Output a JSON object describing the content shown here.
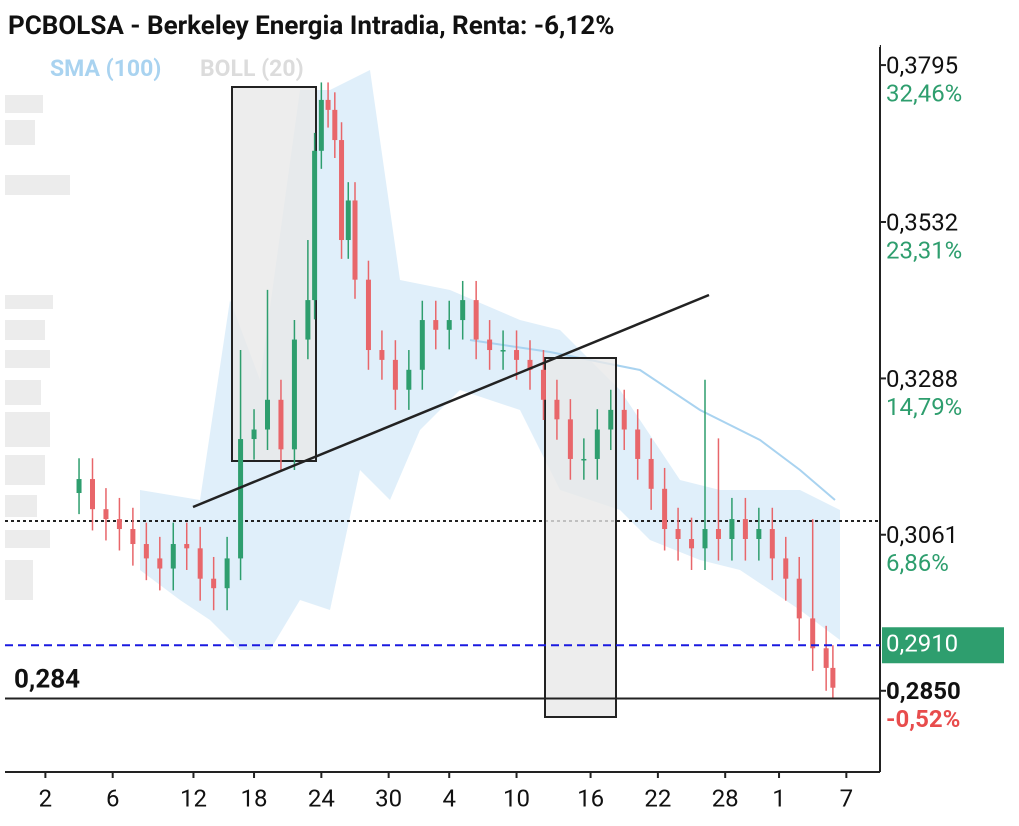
{
  "chart_data": {
    "type": "candlestick",
    "title": "PCBOLSA - Berkeley Energia Intradia, Renta: -6,12%",
    "legend": [
      "SMA (100)",
      "BOLL (20)"
    ],
    "log_scale": true,
    "up_color": "#2e9e6e",
    "down_color": "#e8666a",
    "xlim": [
      0,
      130
    ],
    "ylim": [
      0.2746,
      0.3883
    ],
    "xticks": [
      {
        "value": 6,
        "label": "2"
      },
      {
        "value": 16,
        "label": "6"
      },
      {
        "value": 28,
        "label": "12"
      },
      {
        "value": 37,
        "label": "18"
      },
      {
        "value": 47,
        "label": "24"
      },
      {
        "value": 57,
        "label": "30"
      },
      {
        "value": 66,
        "label": "4"
      },
      {
        "value": 76,
        "label": "10"
      },
      {
        "value": 87,
        "label": "16"
      },
      {
        "value": 97,
        "label": "22"
      },
      {
        "value": 107,
        "label": "28"
      },
      {
        "value": 115,
        "label": "1"
      },
      {
        "value": 125,
        "label": "7"
      }
    ],
    "yticks": [
      {
        "value": 0.3795,
        "label": "0,3795",
        "change": "32,46%"
      },
      {
        "value": 0.3532,
        "label": "0,3532",
        "change": "23,31%"
      },
      {
        "value": 0.3288,
        "label": "0,3288",
        "change": "14,79%"
      },
      {
        "value": 0.3061,
        "label": "0,3061",
        "change": "6,86%"
      }
    ],
    "last_price": {
      "value": 0.291,
      "label": "0,2910"
    },
    "current_price": {
      "value": 0.285,
      "label": "0,2850",
      "change": "-0,52%"
    },
    "level_line": {
      "value": 0.284,
      "label": "0,284"
    },
    "x": [
      11,
      13,
      15,
      17,
      19,
      21,
      23,
      25,
      27,
      29,
      31,
      33,
      35,
      37,
      39,
      41,
      43,
      45,
      46,
      47,
      48,
      49,
      50,
      51,
      52,
      54,
      56,
      58,
      60,
      62,
      64,
      66,
      68,
      70,
      72,
      74,
      76,
      78,
      80,
      82,
      84,
      86,
      88,
      90,
      92,
      94,
      96,
      98,
      100,
      102,
      104,
      106,
      108,
      110,
      112,
      114,
      116,
      118,
      120,
      122,
      123
    ],
    "open": [
      0.312,
      0.314,
      0.3097,
      0.3083,
      0.3069,
      0.3048,
      0.3028,
      0.3014,
      0.3048,
      0.3042,
      0.3,
      0.2987,
      0.3028,
      0.3198,
      0.3212,
      0.3256,
      0.3183,
      0.3347,
      0.3408,
      0.3649,
      0.3735,
      0.3718,
      0.3667,
      0.3503,
      0.3567,
      0.344,
      0.3331,
      0.3316,
      0.3271,
      0.3301,
      0.3377,
      0.3362,
      0.3377,
      0.3408,
      0.3347,
      0.3331,
      0.3331,
      0.3316,
      0.3301,
      0.3256,
      0.3227,
      0.3169,
      0.3169,
      0.3212,
      0.3241,
      0.3212,
      0.3169,
      0.3126,
      0.3069,
      0.3055,
      0.3042,
      0.3069,
      0.3055,
      0.3083,
      0.3055,
      0.3069,
      0.3028,
      0.3,
      0.2946,
      0.2906,
      0.288
    ],
    "high": [
      0.317,
      0.317,
      0.3127,
      0.3113,
      0.3099,
      0.3078,
      0.3058,
      0.3078,
      0.3078,
      0.3072,
      0.303,
      0.3058,
      0.3331,
      0.3242,
      0.3424,
      0.3286,
      0.3377,
      0.3503,
      0.3679,
      0.3765,
      0.3765,
      0.3748,
      0.3697,
      0.3597,
      0.3597,
      0.347,
      0.3361,
      0.3346,
      0.3331,
      0.3407,
      0.3407,
      0.3407,
      0.3438,
      0.3438,
      0.3377,
      0.3361,
      0.3361,
      0.3346,
      0.3331,
      0.3286,
      0.3257,
      0.3199,
      0.3242,
      0.3271,
      0.3271,
      0.3242,
      0.3199,
      0.3156,
      0.3099,
      0.3085,
      0.3286,
      0.3199,
      0.3113,
      0.3113,
      0.3099,
      0.3099,
      0.3058,
      0.303,
      0.3083,
      0.2936,
      0.291
    ],
    "low": [
      0.309,
      0.3067,
      0.3053,
      0.3039,
      0.3018,
      0.2998,
      0.2984,
      0.2984,
      0.3012,
      0.297,
      0.2957,
      0.2957,
      0.2998,
      0.3168,
      0.3182,
      0.3153,
      0.3153,
      0.3317,
      0.3378,
      0.3619,
      0.3688,
      0.3637,
      0.3473,
      0.3473,
      0.341,
      0.3301,
      0.3286,
      0.3241,
      0.3241,
      0.3271,
      0.3332,
      0.3332,
      0.3347,
      0.3317,
      0.3301,
      0.3301,
      0.3286,
      0.3271,
      0.3226,
      0.3197,
      0.3139,
      0.3139,
      0.3139,
      0.3182,
      0.3182,
      0.3139,
      0.3096,
      0.3039,
      0.3025,
      0.3012,
      0.3012,
      0.3025,
      0.3025,
      0.3025,
      0.3025,
      0.2998,
      0.297,
      0.2916,
      0.2876,
      0.285,
      0.284
    ],
    "close": [
      0.314,
      0.3097,
      0.3083,
      0.3069,
      0.3048,
      0.3028,
      0.3014,
      0.3048,
      0.3042,
      0.3,
      0.2987,
      0.3028,
      0.3198,
      0.3212,
      0.3256,
      0.3183,
      0.3347,
      0.3408,
      0.3649,
      0.3735,
      0.3718,
      0.3667,
      0.3503,
      0.3567,
      0.344,
      0.3331,
      0.3316,
      0.3271,
      0.3301,
      0.3377,
      0.3362,
      0.3377,
      0.3408,
      0.3347,
      0.3331,
      0.3331,
      0.3316,
      0.3301,
      0.3256,
      0.3227,
      0.3169,
      0.3169,
      0.3212,
      0.3241,
      0.3212,
      0.3169,
      0.3126,
      0.3069,
      0.3055,
      0.3042,
      0.3069,
      0.3055,
      0.3083,
      0.3055,
      0.3069,
      0.3028,
      0.3,
      0.2946,
      0.2906,
      0.288,
      0.2854
    ]
  }
}
